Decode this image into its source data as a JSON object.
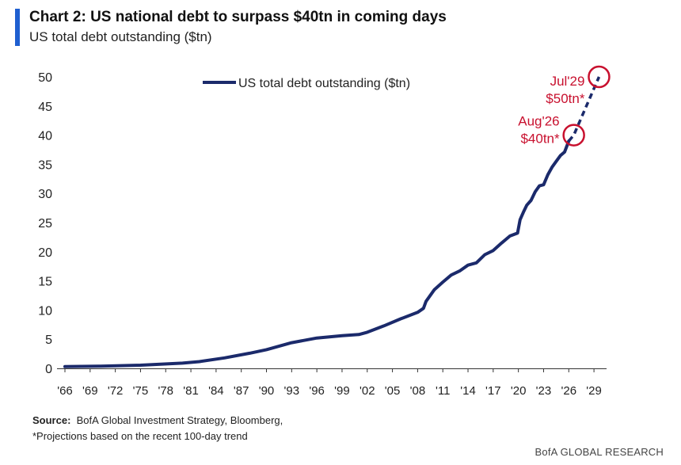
{
  "header": {
    "title": "Chart 2: US national debt to surpass $40tn in coming days",
    "subtitle": "US total debt outstanding ($tn)"
  },
  "footer": {
    "source_label": "Source:",
    "source_text": "BofA Global Investment Strategy, Bloomberg,",
    "note": "*Projections based on the recent 100-day trend",
    "brand": "BofA GLOBAL RESEARCH"
  },
  "colors": {
    "series": "#1b2a6b",
    "annotation": "#c8102e",
    "accent_bar": "#1f5fd0",
    "axis": "#333333"
  },
  "chart_data": {
    "type": "line",
    "title": "Chart 2: US national debt to surpass $40tn in coming days",
    "subtitle": "US total debt outstanding ($tn)",
    "xlabel": "",
    "ylabel": "",
    "xlim": [
      1966,
      2030.5
    ],
    "ylim": [
      0,
      50
    ],
    "yticks": [
      0,
      5,
      10,
      15,
      20,
      25,
      30,
      35,
      40,
      45,
      50
    ],
    "xticks": [
      1966,
      1969,
      1972,
      1975,
      1978,
      1981,
      1984,
      1987,
      1990,
      1993,
      1996,
      1999,
      2002,
      2005,
      2008,
      2011,
      2014,
      2017,
      2020,
      2023,
      2026,
      2029
    ],
    "xtick_labels": [
      "'66",
      "'69",
      "'72",
      "'75",
      "'78",
      "'81",
      "'84",
      "'87",
      "'90",
      "'93",
      "'96",
      "'99",
      "'02",
      "'05",
      "'08",
      "'11",
      "'14",
      "'17",
      "'20",
      "'23",
      "'26",
      "'29"
    ],
    "grid": false,
    "legend": {
      "position": "top-center",
      "entries": [
        "US total debt outstanding ($tn)"
      ]
    },
    "series": [
      {
        "name": "US total debt outstanding ($tn)",
        "style": "solid",
        "x": [
          1966,
          1970,
          1975,
          1980,
          1982,
          1985,
          1988,
          1990,
          1993,
          1996,
          1999,
          2001,
          2002,
          2004,
          2006,
          2008,
          2008.7,
          2009,
          2010,
          2011,
          2012,
          2013,
          2014,
          2015,
          2016,
          2017,
          2018,
          2019,
          2019.9,
          2020.2,
          2020.6,
          2021,
          2021.5,
          2022,
          2022.5,
          2023,
          2023.5,
          2024,
          2024.5,
          2025,
          2025.5,
          2026
        ],
        "y": [
          0.3,
          0.37,
          0.54,
          0.9,
          1.15,
          1.8,
          2.6,
          3.2,
          4.4,
          5.2,
          5.6,
          5.8,
          6.2,
          7.3,
          8.5,
          9.6,
          10.3,
          11.5,
          13.5,
          14.8,
          16.0,
          16.7,
          17.7,
          18.1,
          19.5,
          20.2,
          21.5,
          22.7,
          23.2,
          25.5,
          26.8,
          28.0,
          28.8,
          30.3,
          31.3,
          31.5,
          33.2,
          34.5,
          35.5,
          36.5,
          37.1,
          39.0
        ]
      },
      {
        "name": "Projection",
        "style": "dashed",
        "x": [
          2026,
          2026.6,
          2029.6
        ],
        "y": [
          39.0,
          40.0,
          50.0
        ]
      }
    ],
    "annotations": [
      {
        "label_line1": "Aug'26",
        "label_line2": "$40tn*",
        "x": 2026.6,
        "y": 40
      },
      {
        "label_line1": "Jul'29",
        "label_line2": "$50tn*",
        "x": 2029.6,
        "y": 50
      }
    ]
  }
}
